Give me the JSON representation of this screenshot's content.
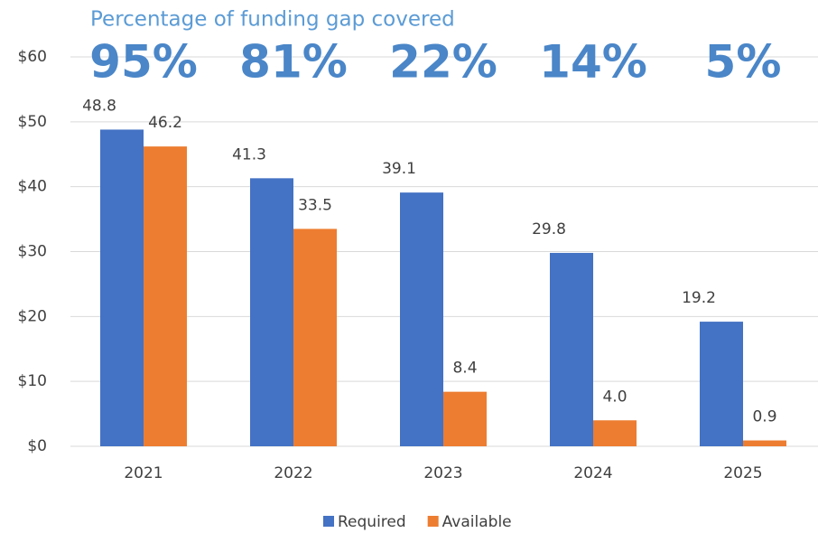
{
  "chart_data": {
    "type": "bar",
    "title": "Percentage of funding gap covered",
    "annotations": [
      "95%",
      "81%",
      "22%",
      "14%",
      "5%"
    ],
    "categories": [
      "2021",
      "2022",
      "2023",
      "2024",
      "2025"
    ],
    "series": [
      {
        "name": "Required",
        "color": "#4472c4",
        "values": [
          48.8,
          41.3,
          39.1,
          29.8,
          19.2
        ]
      },
      {
        "name": "Available",
        "color": "#ed7d31",
        "values": [
          46.2,
          33.5,
          8.4,
          4.0,
          0.9
        ],
        "value_labels": [
          "46.2",
          "33.5",
          "8.4",
          "4.0",
          "0.9"
        ]
      }
    ],
    "ylim": [
      0,
      60
    ],
    "yticks": [
      {
        "value": 0,
        "label": "$0"
      },
      {
        "value": 10,
        "label": "$10"
      },
      {
        "value": 20,
        "label": "$20"
      },
      {
        "value": 30,
        "label": "$30"
      },
      {
        "value": 40,
        "label": "$40"
      },
      {
        "value": 50,
        "label": "$50"
      },
      {
        "value": 60,
        "label": "$60"
      }
    ],
    "grid": true,
    "legend": "bottom"
  }
}
